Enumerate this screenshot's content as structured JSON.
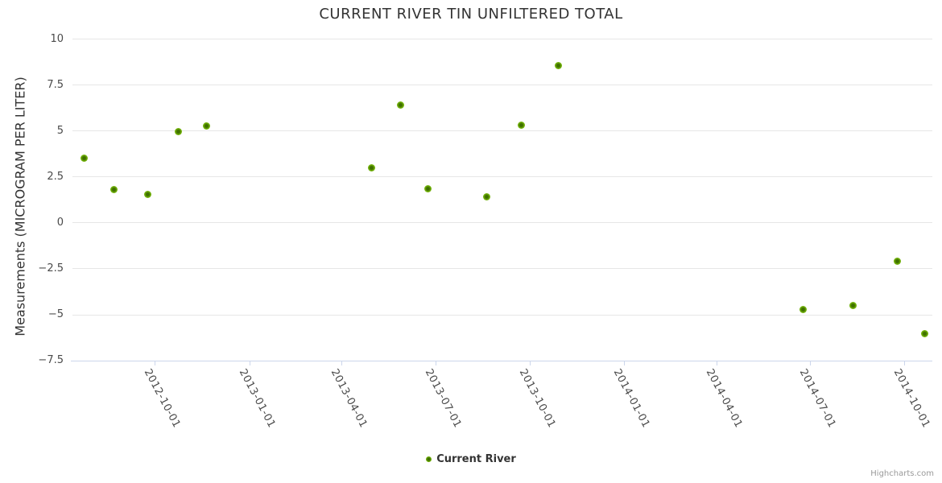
{
  "title": "CURRENT RIVER TIN UNFILTERED TOTAL",
  "credits": "Highcharts.com",
  "legend": {
    "items": [
      {
        "label": "Current River",
        "marker_color": "#6cab00"
      }
    ]
  },
  "colors": {
    "point_core": "#3f7000",
    "point_mid": "#6cab00",
    "point_edge": "#8cc63f",
    "gridline": "#e6e6e6",
    "axis_line": "#ccd6eb",
    "title_text": "#333333",
    "label_text": "#4a4a4a",
    "credits_text": "#999999",
    "background": "#ffffff"
  },
  "chart_data": {
    "type": "scatter",
    "title": "CURRENT RIVER TIN UNFILTERED TOTAL",
    "xlabel": "",
    "ylabel": "Measurements (MICROGRAM PER LITER)",
    "x_type": "datetime",
    "xlim": [
      "2012-07-11",
      "2014-10-28"
    ],
    "ylim": [
      -7.5,
      10
    ],
    "y_ticks": [
      10,
      7.5,
      5,
      2.5,
      0,
      -2.5,
      -5,
      -7.5
    ],
    "y_tick_labels": [
      "10",
      "7.5",
      "5",
      "2.5",
      "0",
      "−2.5",
      "−5",
      "−7.5"
    ],
    "x_tick_labels": [
      "2012-10-01",
      "2013-01-01",
      "2013-04-01",
      "2013-07-01",
      "2013-10-01",
      "2014-01-01",
      "2014-04-01",
      "2014-07-01",
      "2014-10-01"
    ],
    "grid": "horizontal",
    "legend_position": "bottom-center",
    "series": [
      {
        "name": "Current River",
        "points": [
          {
            "x": "2012-07-24",
            "y": 3.5
          },
          {
            "x": "2012-08-22",
            "y": 1.8
          },
          {
            "x": "2012-09-24",
            "y": 1.55
          },
          {
            "x": "2012-10-24",
            "y": 4.95
          },
          {
            "x": "2012-11-20",
            "y": 5.25
          },
          {
            "x": "2013-04-30",
            "y": 3.0
          },
          {
            "x": "2013-05-28",
            "y": 6.4
          },
          {
            "x": "2013-06-24",
            "y": 1.85
          },
          {
            "x": "2013-08-20",
            "y": 1.4
          },
          {
            "x": "2013-09-23",
            "y": 5.3
          },
          {
            "x": "2013-10-29",
            "y": 8.55
          },
          {
            "x": "2014-06-24",
            "y": -4.75
          },
          {
            "x": "2014-08-12",
            "y": -4.5
          },
          {
            "x": "2014-09-24",
            "y": -2.1
          },
          {
            "x": "2014-10-21",
            "y": -6.05
          }
        ]
      }
    ]
  }
}
